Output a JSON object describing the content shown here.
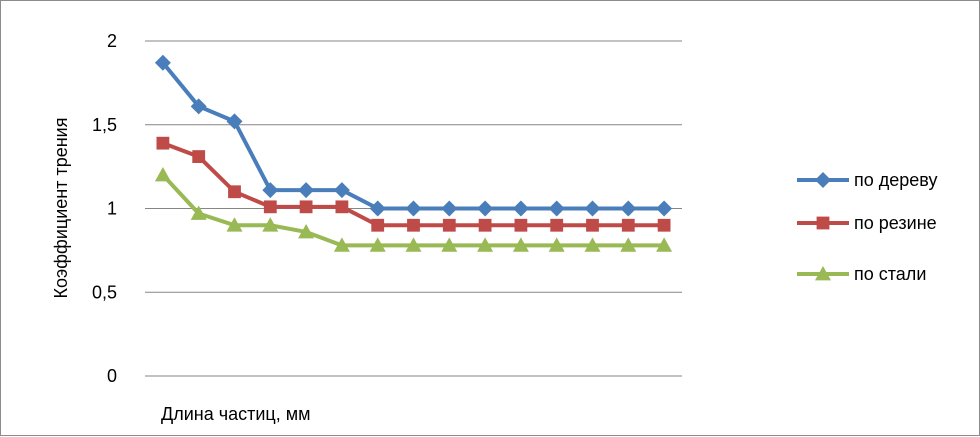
{
  "chart_data": {
    "type": "line",
    "title": "",
    "xlabel": "Длина частиц, мм",
    "ylabel": "Коэффициент трения",
    "ylim": [
      0,
      2
    ],
    "yticks": [
      0,
      0.5,
      1,
      1.5,
      2
    ],
    "ytick_labels": [
      "0",
      "0,5",
      "1",
      "1,5",
      "2"
    ],
    "grid": "horizontal major gridlines",
    "legend_position": "right",
    "series": [
      {
        "name": "по дереву",
        "color": "#4a7ebb",
        "marker": "diamond",
        "values": [
          1.87,
          1.61,
          1.52,
          1.11,
          1.11,
          1.11,
          1.0,
          1.0,
          1.0,
          1.0,
          1.0,
          1.0,
          1.0,
          1.0,
          1.0
        ]
      },
      {
        "name": "по резине",
        "color": "#be4b48",
        "marker": "square",
        "values": [
          1.39,
          1.31,
          1.1,
          1.01,
          1.01,
          1.01,
          0.9,
          0.9,
          0.9,
          0.9,
          0.9,
          0.9,
          0.9,
          0.9,
          0.9
        ]
      },
      {
        "name": "по стали",
        "color": "#98b954",
        "marker": "triangle",
        "values": [
          1.2,
          0.97,
          0.9,
          0.9,
          0.86,
          0.78,
          0.78,
          0.78,
          0.78,
          0.78,
          0.78,
          0.78,
          0.78,
          0.78,
          0.78
        ]
      }
    ]
  }
}
